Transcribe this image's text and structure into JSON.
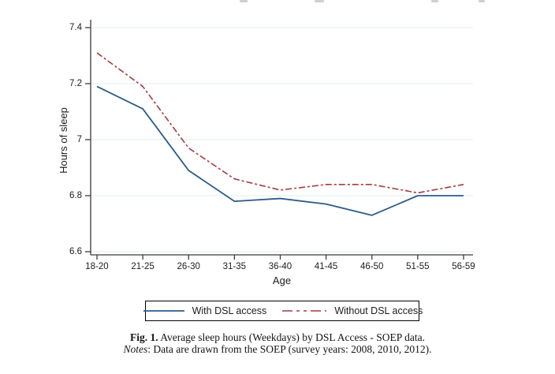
{
  "chart_data": {
    "type": "line",
    "title": "",
    "xlabel": "Age",
    "ylabel": "Hours of sleep",
    "categories": [
      "18-20",
      "21-25",
      "26-30",
      "31-35",
      "36-40",
      "41-45",
      "46-50",
      "51-55",
      "56-59"
    ],
    "series": [
      {
        "name": "With DSL access",
        "color": "#2b5c88",
        "style": "solid",
        "values": [
          7.19,
          7.11,
          6.89,
          6.78,
          6.79,
          6.77,
          6.73,
          6.8,
          6.8
        ]
      },
      {
        "name": "Without DSL access",
        "color": "#a63b42",
        "style": "dash-dot",
        "values": [
          7.31,
          7.19,
          6.97,
          6.86,
          6.82,
          6.84,
          6.84,
          6.81,
          6.84
        ]
      }
    ],
    "y_ticks": [
      {
        "label": "7.4",
        "value": 7.4
      },
      {
        "label": "7.2",
        "value": 7.2
      },
      {
        "label": "7",
        "value": 7.0
      },
      {
        "label": "6.8",
        "value": 6.8
      },
      {
        "label": "6.6",
        "value": 6.6
      }
    ],
    "ylim": [
      6.6,
      7.4
    ],
    "grid": true,
    "legend_position": "bottom",
    "colors": {
      "gridline": "#e3eef0",
      "axis": "#3a3a3a"
    }
  },
  "caption": {
    "fig_label": "Fig. 1.",
    "fig_text": " Average sleep hours (Weekdays) by DSL Access - SOEP data.",
    "notes_label": "Notes",
    "notes_rest": ": Data are drawn from the SOEP (survey years: 2008, 2010, 2012)."
  }
}
